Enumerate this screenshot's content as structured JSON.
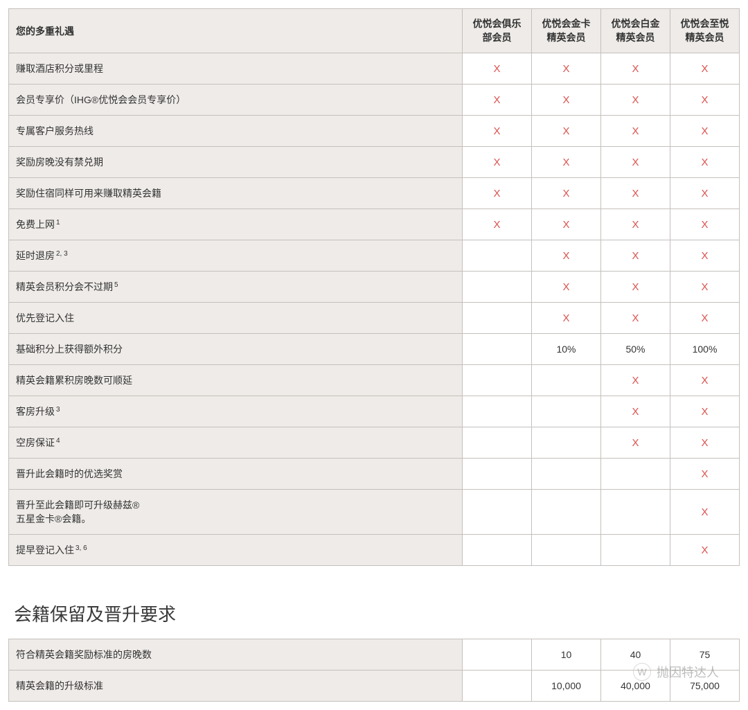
{
  "colors": {
    "header_bg": "#eeebe8",
    "benefit_bg": "#eeebe8",
    "cell_bg": "#ffffff",
    "border": "#c4c0bc",
    "text": "#333333",
    "x_mark": "#d9534f"
  },
  "checkmark_glyph": "X",
  "benefits_table": {
    "header": {
      "benefit_label": "您的多重礼遇",
      "tiers": [
        "优悦会俱乐部会员",
        "优悦会金卡精英会员",
        "优悦会白金精英会员",
        "优悦会至悦精英会员"
      ]
    },
    "rows": [
      {
        "label": "赚取酒店积分或里程",
        "sup": "",
        "cells": [
          "X",
          "X",
          "X",
          "X"
        ]
      },
      {
        "label": "会员专享价（IHG®优悦会会员专享价）",
        "sup": "",
        "cells": [
          "X",
          "X",
          "X",
          "X"
        ]
      },
      {
        "label": "专属客户服务热线",
        "sup": "",
        "cells": [
          "X",
          "X",
          "X",
          "X"
        ]
      },
      {
        "label": "奖励房晚没有禁兑期",
        "sup": "",
        "cells": [
          "X",
          "X",
          "X",
          "X"
        ]
      },
      {
        "label": "奖励住宿同样可用来赚取精英会籍",
        "sup": "",
        "cells": [
          "X",
          "X",
          "X",
          "X"
        ]
      },
      {
        "label": "免费上网",
        "sup": "1",
        "cells": [
          "X",
          "X",
          "X",
          "X"
        ]
      },
      {
        "label": "延时退房",
        "sup": "2, 3",
        "cells": [
          "",
          "X",
          "X",
          "X"
        ]
      },
      {
        "label": "精英会员积分会不过期",
        "sup": "5",
        "cells": [
          "",
          "X",
          "X",
          "X"
        ]
      },
      {
        "label": "优先登记入住",
        "sup": "",
        "cells": [
          "",
          "X",
          "X",
          "X"
        ]
      },
      {
        "label": "基础积分上获得额外积分",
        "sup": "",
        "cells": [
          "",
          "10%",
          "50%",
          "100%"
        ]
      },
      {
        "label": "精英会籍累积房晚数可顺延",
        "sup": "",
        "cells": [
          "",
          "",
          "X",
          "X"
        ]
      },
      {
        "label": "客房升级",
        "sup": "3",
        "cells": [
          "",
          "",
          "X",
          "X"
        ]
      },
      {
        "label": "空房保证",
        "sup": "4",
        "cells": [
          "",
          "",
          "X",
          "X"
        ]
      },
      {
        "label": "晋升此会籍时的优选奖赏",
        "sup": "",
        "cells": [
          "",
          "",
          "",
          "X"
        ]
      },
      {
        "label": "晋升至此会籍即可升级赫兹®",
        "label_line2": "五星金卡®会籍。",
        "sup": "",
        "cells": [
          "",
          "",
          "",
          "X"
        ]
      },
      {
        "label": "提早登记入住",
        "sup": "3, 6",
        "cells": [
          "",
          "",
          "",
          "X"
        ]
      }
    ]
  },
  "requirements_section": {
    "title": "会籍保留及晋升要求",
    "rows": [
      {
        "label": "符合精英会籍奖励标准的房晚数",
        "cells": [
          "",
          "10",
          "40",
          "75"
        ]
      },
      {
        "label": "精英会籍的升级标准",
        "cells": [
          "",
          "10,000",
          "40,000",
          "75,000"
        ]
      }
    ]
  },
  "watermark": {
    "icon_glyph": "W",
    "text": "抛因特达人"
  }
}
